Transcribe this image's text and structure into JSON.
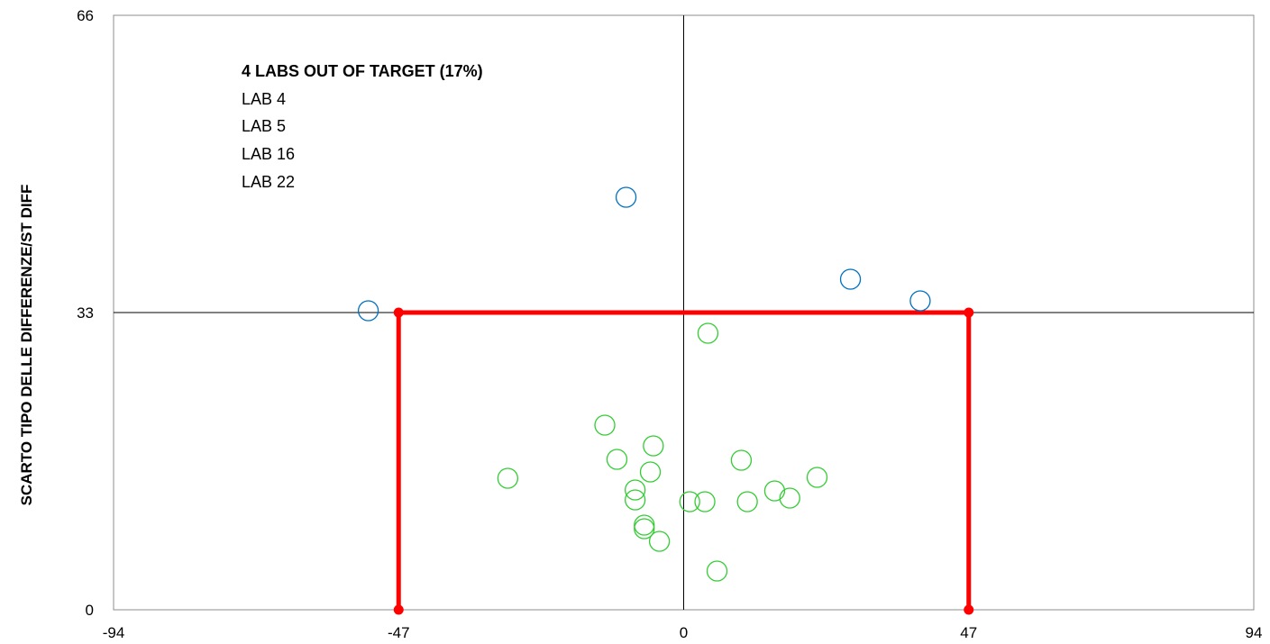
{
  "chart_data": {
    "type": "scatter",
    "ylabel": "SCARTO TIPO DELLE DIFFERENZE/ST DIFF",
    "xlim": [
      -94,
      94
    ],
    "ylim": [
      0,
      66
    ],
    "x_ticks": [
      "-94",
      "-47",
      "0",
      "47",
      "94"
    ],
    "y_ticks": [
      "0",
      "33",
      "66"
    ],
    "grid": false,
    "crosshair": {
      "x": 0,
      "y": 33
    },
    "target_box": {
      "x_min": -47,
      "x_max": 47,
      "y_max": 33,
      "color": "#ff0000"
    },
    "annotation": {
      "title": "4 LABS OUT OF TARGET (17%)",
      "labs": [
        "LAB 4",
        "LAB 5",
        "LAB 16",
        "LAB 22"
      ],
      "title_color": "#0070c0"
    },
    "series": [
      {
        "color": "#0070c0",
        "points": [
          {
            "x": -52,
            "y": 33.2
          },
          {
            "x": -9.5,
            "y": 45.8
          },
          {
            "x": 27.5,
            "y": 36.7
          },
          {
            "x": 39,
            "y": 34.3
          }
        ]
      },
      {
        "color": "#33cc33",
        "points": [
          {
            "x": 4,
            "y": 30.7
          },
          {
            "x": -13,
            "y": 20.5
          },
          {
            "x": -5,
            "y": 18.2
          },
          {
            "x": -11,
            "y": 16.7
          },
          {
            "x": -5.5,
            "y": 15.3
          },
          {
            "x": -29,
            "y": 14.6
          },
          {
            "x": -8,
            "y": 13.3
          },
          {
            "x": -8,
            "y": 12.2
          },
          {
            "x": -6.5,
            "y": 9.4
          },
          {
            "x": -6.5,
            "y": 9.0
          },
          {
            "x": -4,
            "y": 7.6
          },
          {
            "x": 9.5,
            "y": 16.6
          },
          {
            "x": 22,
            "y": 14.7
          },
          {
            "x": 1,
            "y": 12.0
          },
          {
            "x": 3.5,
            "y": 12.0
          },
          {
            "x": 10.5,
            "y": 12.0
          },
          {
            "x": 15,
            "y": 13.2
          },
          {
            "x": 17.5,
            "y": 12.4
          },
          {
            "x": 5.5,
            "y": 4.3
          }
        ]
      }
    ]
  }
}
